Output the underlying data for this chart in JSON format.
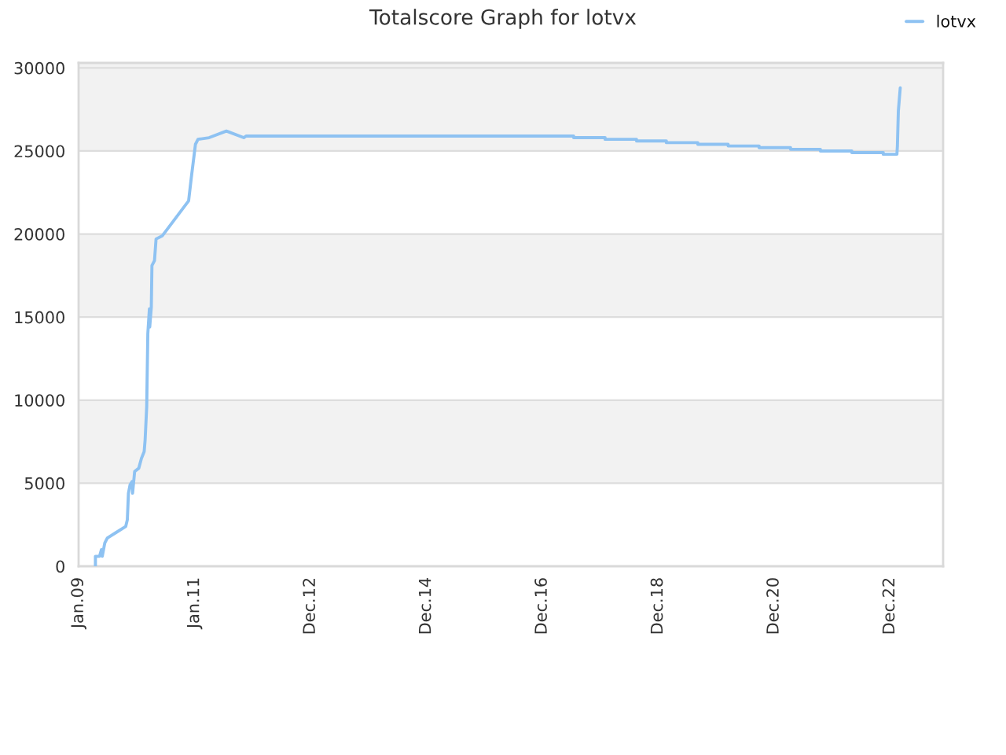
{
  "chart_data": {
    "type": "line",
    "title": "Totalscore Graph for lotvx",
    "series": [
      {
        "name": "lotvx",
        "color": "#8ec2f2",
        "x": [
          "2009-04-17",
          "2009-04-17",
          "2009-05-13",
          "2009-05-25",
          "2009-05-30",
          "2009-06-15",
          "2009-07-01",
          "2009-08-20",
          "2009-10-25",
          "2009-11-04",
          "2009-11-11",
          "2009-11-21",
          "2009-12-04",
          "2009-12-07",
          "2009-12-20",
          "2010-01-15",
          "2010-02-01",
          "2010-02-18",
          "2010-02-24",
          "2010-03-06",
          "2010-03-13",
          "2010-03-23",
          "2010-03-25",
          "2010-04-04",
          "2010-04-08",
          "2010-04-24",
          "2010-05-04",
          "2010-06-13",
          "2010-11-25",
          "2010-12-12",
          "2011-01-07",
          "2011-01-23",
          "2011-04-03",
          "2011-07-21",
          "2011-11-07",
          "2011-11-23",
          "2017-07-16",
          "2017-07-16",
          "2018-01-30",
          "2018-01-30",
          "2018-08-16",
          "2018-08-16",
          "2019-02-20",
          "2019-02-20",
          "2019-09-06",
          "2019-09-06",
          "2020-03-15",
          "2020-03-15",
          "2020-09-26",
          "2020-09-26",
          "2021-04-12",
          "2021-04-12",
          "2021-10-17",
          "2021-10-17",
          "2022-05-03",
          "2022-05-03",
          "2022-11-17",
          "2022-11-17",
          "2023-02-11",
          "2023-02-14",
          "2023-02-20",
          "2023-03-04"
        ],
        "values": [
          0,
          600,
          600,
          1000,
          600,
          1400,
          1700,
          2000,
          2400,
          2800,
          4400,
          4900,
          5100,
          4400,
          5700,
          5900,
          6500,
          6900,
          7600,
          9600,
          14000,
          15500,
          14400,
          15600,
          18100,
          18400,
          19700,
          19900,
          22000,
          23400,
          25400,
          25700,
          25800,
          26200,
          25800,
          25900,
          25900,
          25800,
          25800,
          25700,
          25700,
          25600,
          25600,
          25500,
          25500,
          25400,
          25400,
          25300,
          25300,
          25200,
          25200,
          25100,
          25100,
          25000,
          25000,
          24900,
          24900,
          24800,
          24800,
          25300,
          27400,
          28800
        ]
      }
    ],
    "xlim": [
      "2009-01-01",
      "2023-11-29"
    ],
    "xticks": [
      {
        "value": "2009-01-01",
        "label": "Jan.09"
      },
      {
        "value": "2011-01-01",
        "label": "Jan.11"
      },
      {
        "value": "2012-12-31",
        "label": "Dec.12"
      },
      {
        "value": "2014-12-31",
        "label": "Dec.14"
      },
      {
        "value": "2016-12-30",
        "label": "Dec.16"
      },
      {
        "value": "2018-12-30",
        "label": "Dec.18"
      },
      {
        "value": "2020-12-29",
        "label": "Dec.20"
      },
      {
        "value": "2022-12-29",
        "label": "Dec.22"
      }
    ],
    "ylim": [
      0,
      30300
    ],
    "yticks": [
      0,
      5000,
      10000,
      15000,
      20000,
      25000,
      30000
    ],
    "bands": [
      {
        "axis": "y",
        "from": 5000,
        "to": 10000,
        "color": "#f2f2f2"
      },
      {
        "axis": "y",
        "from": 15000,
        "to": 20000,
        "color": "#f2f2f2"
      },
      {
        "axis": "y",
        "from": 25000,
        "to": 30300,
        "color": "#f2f2f2"
      }
    ],
    "grid": "y",
    "legend": "top right",
    "marker": "none",
    "line_style": "solid"
  }
}
